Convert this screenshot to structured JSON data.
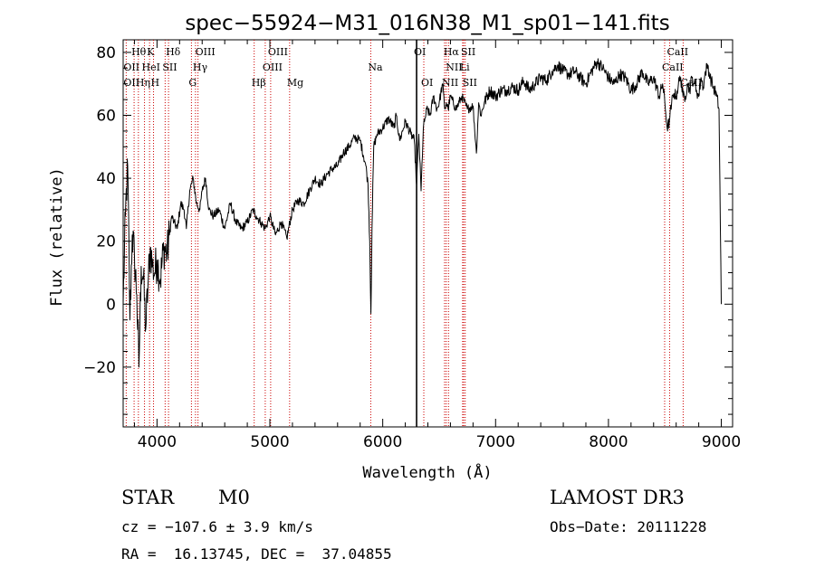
{
  "chart_data": {
    "type": "line",
    "title": "spec−55924−M31_016N38_M1_sp01−141.fits",
    "xlabel": "Wavelength (Å)",
    "ylabel": "Flux (relative)",
    "xlim": [
      3700,
      9100
    ],
    "ylim": [
      -39,
      84
    ],
    "xticks": [
      4000,
      5000,
      6000,
      7000,
      8000,
      9000
    ],
    "xtick_labels": [
      "4000",
      "5000",
      "6000",
      "7000",
      "8000",
      "9000"
    ],
    "yticks": [
      -20,
      0,
      20,
      40,
      60,
      80
    ],
    "ytick_labels": [
      "−20",
      "0",
      "20",
      "40",
      "60",
      "80"
    ],
    "grid": false,
    "series": [
      {
        "name": "spectrum",
        "x": [
          3700,
          3720,
          3740,
          3760,
          3780,
          3800,
          3820,
          3840,
          3860,
          3880,
          3900,
          3920,
          3940,
          3960,
          3980,
          4000,
          4030,
          4060,
          4090,
          4110,
          4130,
          4150,
          4180,
          4210,
          4240,
          4260,
          4290,
          4320,
          4350,
          4380,
          4400,
          4430,
          4460,
          4500,
          4550,
          4600,
          4650,
          4700,
          4750,
          4800,
          4850,
          4880,
          4920,
          4960,
          5000,
          5050,
          5100,
          5150,
          5200,
          5250,
          5300,
          5350,
          5400,
          5450,
          5500,
          5550,
          5600,
          5650,
          5700,
          5750,
          5800,
          5850,
          5870,
          5885,
          5895,
          5905,
          5920,
          5950,
          6000,
          6050,
          6100,
          6120,
          6150,
          6200,
          6250,
          6280,
          6300,
          6320,
          6340,
          6360,
          6370,
          6390,
          6420,
          6450,
          6480,
          6500,
          6530,
          6550,
          6563,
          6580,
          6600,
          6650,
          6700,
          6750,
          6800,
          6830,
          6850,
          6870,
          6900,
          6950,
          7000,
          7050,
          7100,
          7150,
          7200,
          7250,
          7300,
          7350,
          7400,
          7450,
          7500,
          7550,
          7600,
          7650,
          7700,
          7750,
          7800,
          7850,
          7900,
          7950,
          8000,
          8050,
          8100,
          8150,
          8200,
          8250,
          8300,
          8350,
          8400,
          8450,
          8480,
          8500,
          8520,
          8540,
          8560,
          8580,
          8600,
          8620,
          8640,
          8660,
          8680,
          8700,
          8720,
          8740,
          8760,
          8780,
          8800,
          8820,
          8840,
          8860,
          8880,
          8900,
          8920,
          8940,
          8960,
          8980,
          9000
        ],
        "values": [
          0,
          28,
          44,
          -5,
          22,
          15,
          3,
          -20,
          12,
          8,
          -8,
          6,
          18,
          12,
          10,
          14,
          8,
          18,
          16,
          22,
          28,
          26,
          24,
          32,
          30,
          24,
          36,
          40,
          32,
          30,
          36,
          40,
          30,
          28,
          30,
          24,
          32,
          26,
          24,
          26,
          30,
          28,
          26,
          24,
          28,
          22,
          26,
          21,
          30,
          33,
          32,
          36,
          40,
          38,
          41,
          43,
          44,
          48,
          50,
          53,
          52,
          44,
          38,
          20,
          -3,
          24,
          50,
          54,
          56,
          59,
          56,
          60,
          52,
          58,
          54,
          52,
          38,
          54,
          36,
          56,
          58,
          62,
          60,
          66,
          62,
          64,
          70,
          62,
          64,
          62,
          66,
          62,
          66,
          62,
          63,
          48,
          64,
          60,
          64,
          68,
          66,
          68,
          68,
          69,
          68,
          71,
          68,
          70,
          72,
          71,
          74,
          76,
          74,
          73,
          74,
          72,
          70,
          74,
          77,
          75,
          72,
          70,
          73,
          72,
          68,
          70,
          74,
          70,
          72,
          66,
          70,
          64,
          56,
          58,
          64,
          67,
          66,
          70,
          72,
          66,
          66,
          70,
          68,
          72,
          70,
          68,
          66,
          72,
          69,
          74,
          76,
          72,
          70,
          68,
          66,
          62,
          0
        ]
      }
    ],
    "lines": [
      {
        "name": "Hθ",
        "wavelength": 3797
      },
      {
        "name": "OII",
        "wavelength": 3727
      },
      {
        "name": "Hη",
        "wavelength": 3835
      },
      {
        "name": "K",
        "wavelength": 3934
      },
      {
        "name": "H",
        "wavelength": 3969
      },
      {
        "name": "HeI",
        "wavelength": 3889
      },
      {
        "name": "SII",
        "wavelength": 4072
      },
      {
        "name": "Hδ",
        "wavelength": 4102
      },
      {
        "name": "G",
        "wavelength": 4305
      },
      {
        "name": "Hγ",
        "wavelength": 4341
      },
      {
        "name": "OIII",
        "wavelength": 4363
      },
      {
        "name": "Hβ",
        "wavelength": 4861
      },
      {
        "name": "OIII",
        "wavelength": 4959
      },
      {
        "name": "OIII",
        "wavelength": 5007
      },
      {
        "name": "Mg",
        "wavelength": 5175
      },
      {
        "name": "Na",
        "wavelength": 5894
      },
      {
        "name": "OI",
        "wavelength": 6300
      },
      {
        "name": "OI",
        "wavelength": 6364
      },
      {
        "name": "NII",
        "wavelength": 6548
      },
      {
        "name": "Hα",
        "wavelength": 6563
      },
      {
        "name": "NII",
        "wavelength": 6583
      },
      {
        "name": "Li",
        "wavelength": 6708
      },
      {
        "name": "SII",
        "wavelength": 6717
      },
      {
        "name": "SII",
        "wavelength": 6731
      },
      {
        "name": "CaII",
        "wavelength": 8498
      },
      {
        "name": "CaII",
        "wavelength": 8542
      },
      {
        "name": "CaII",
        "wavelength": 8662
      }
    ],
    "line_labels": [
      {
        "text": "Hθ",
        "wavelength": 3797,
        "row": 0
      },
      {
        "text": "K",
        "wavelength": 3934,
        "row": 0
      },
      {
        "text": "Hδ",
        "wavelength": 4102,
        "row": 0
      },
      {
        "text": "OIII",
        "wavelength": 4363,
        "row": 0
      },
      {
        "text": "OIII",
        "wavelength": 5007,
        "row": 0
      },
      {
        "text": "OI",
        "wavelength": 6300,
        "row": 0
      },
      {
        "text": "Hα",
        "wavelength": 6563,
        "row": 0
      },
      {
        "text": "SII",
        "wavelength": 6717,
        "row": 0
      },
      {
        "text": "CaII",
        "wavelength": 8542,
        "row": 0
      },
      {
        "text": "OII",
        "wavelength": 3727,
        "row": 1
      },
      {
        "text": "HeI",
        "wavelength": 3889,
        "row": 1
      },
      {
        "text": "SII",
        "wavelength": 4072,
        "row": 1
      },
      {
        "text": "Hγ",
        "wavelength": 4341,
        "row": 1
      },
      {
        "text": "OIII",
        "wavelength": 4959,
        "row": 1
      },
      {
        "text": "Na",
        "wavelength": 5894,
        "row": 1
      },
      {
        "text": "NII",
        "wavelength": 6583,
        "row": 1
      },
      {
        "text": "Li",
        "wavelength": 6708,
        "row": 1
      },
      {
        "text": "CaII",
        "wavelength": 8498,
        "row": 1
      },
      {
        "text": "OII",
        "wavelength": 3727,
        "row": 2
      },
      {
        "text": "Hη",
        "wavelength": 3835,
        "row": 2
      },
      {
        "text": "H",
        "wavelength": 3969,
        "row": 2
      },
      {
        "text": "G",
        "wavelength": 4305,
        "row": 2
      },
      {
        "text": "Hβ",
        "wavelength": 4861,
        "row": 2
      },
      {
        "text": "Mg",
        "wavelength": 5175,
        "row": 2
      },
      {
        "text": "OI",
        "wavelength": 6364,
        "row": 2
      },
      {
        "text": "NII",
        "wavelength": 6548,
        "row": 2
      },
      {
        "text": "SII",
        "wavelength": 6731,
        "row": 2
      },
      {
        "text": "CaII",
        "wavelength": 8662,
        "row": 2
      }
    ],
    "solid_marker_wavelength": 6300,
    "line_color": "#cc0000"
  },
  "info": {
    "class": "STAR",
    "subclass": "M0",
    "survey": "LAMOST DR3",
    "cz": "cz = −107.6 ± 3.9 km/s",
    "obs_date": "Obs−Date: 20111228",
    "radec": "RA =  16.13745, DEC =  37.04855"
  }
}
